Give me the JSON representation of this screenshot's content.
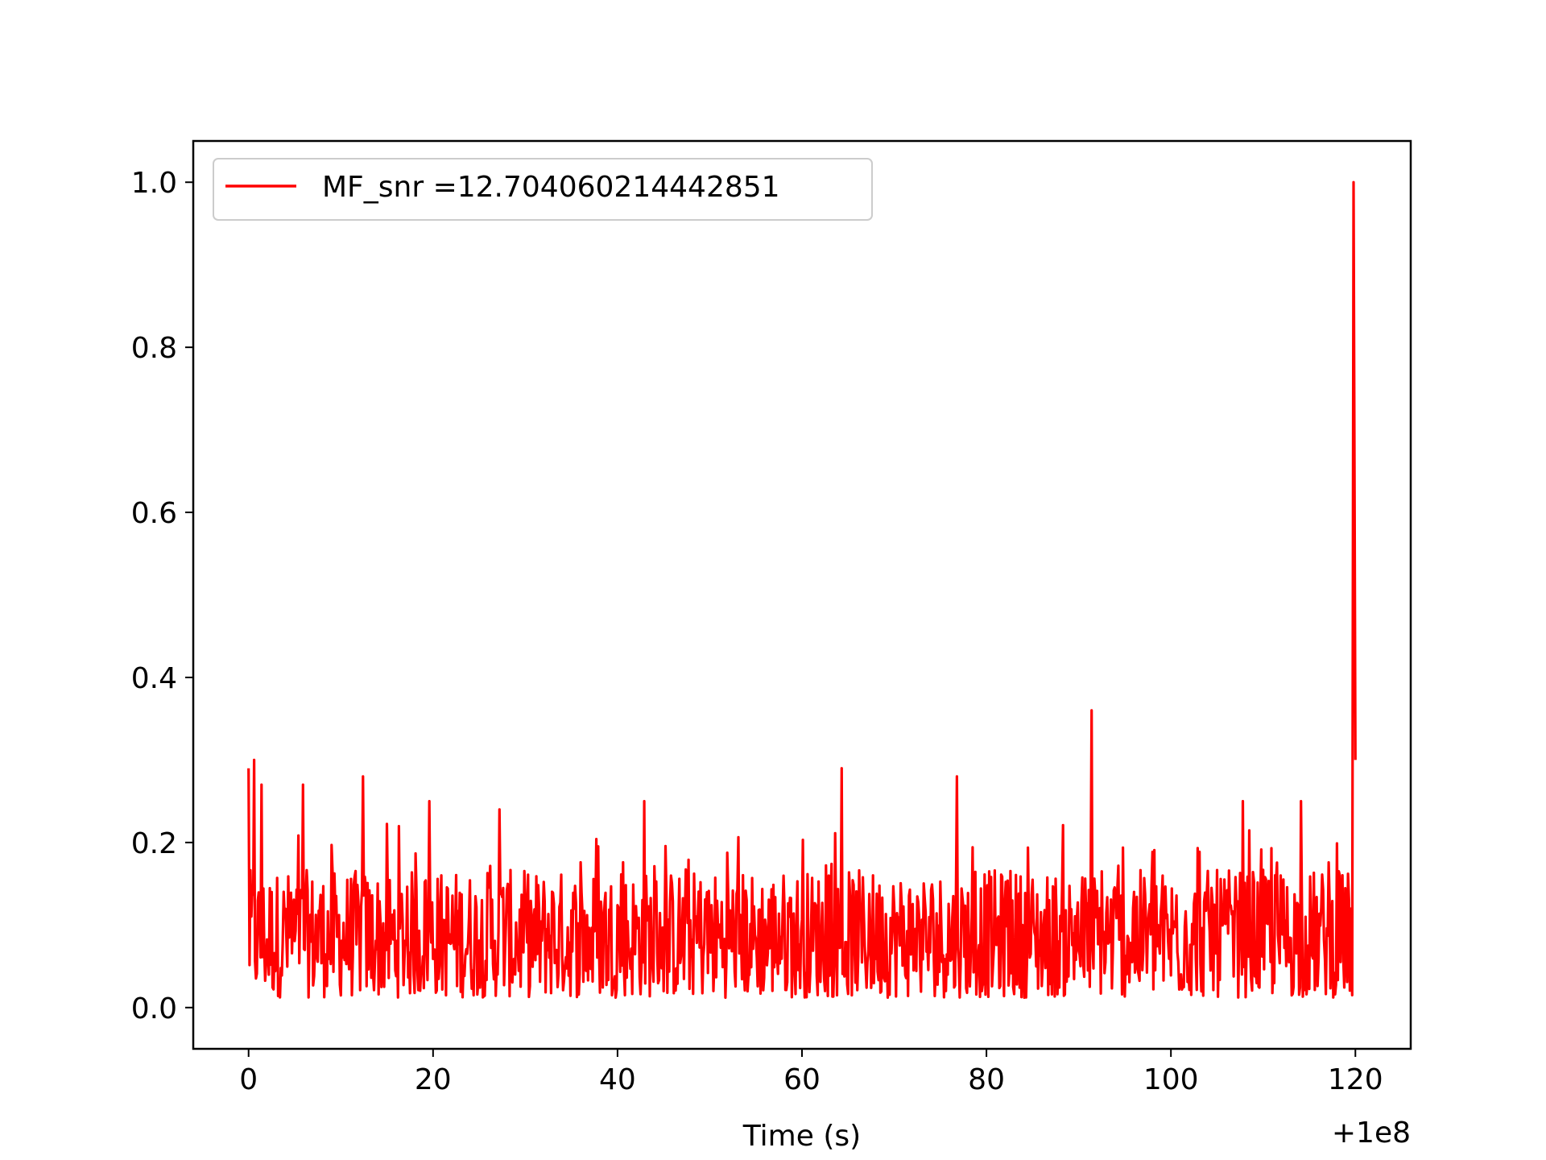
{
  "chart_data": {
    "type": "line",
    "title": "",
    "xlabel": "Time (s)",
    "ylabel": "",
    "x_offset_label": "+1e8",
    "xlim": [
      -6,
      126
    ],
    "ylim": [
      -0.05,
      1.05
    ],
    "xticks": [
      0,
      20,
      40,
      60,
      80,
      100,
      120
    ],
    "xtick_labels": [
      "0",
      "20",
      "40",
      "60",
      "80",
      "100",
      "120"
    ],
    "yticks": [
      0.0,
      0.2,
      0.4,
      0.6,
      0.8,
      1.0
    ],
    "ytick_labels": [
      "0.0",
      "0.2",
      "0.4",
      "0.6",
      "0.8",
      "1.0"
    ],
    "grid": false,
    "legend_position": "top-left",
    "series": [
      {
        "name": "MF_snr =12.704060214442851",
        "color": "#ff0000",
        "noise_range": [
          0,
          119.6
        ],
        "noise_min": 0.0,
        "noise_typical_max": 0.25,
        "peaks": [
          {
            "x": 0.0,
            "y": 0.29
          },
          {
            "x": 0.6,
            "y": 0.3
          },
          {
            "x": 1.4,
            "y": 0.27
          },
          {
            "x": 5.9,
            "y": 0.27
          },
          {
            "x": 12.4,
            "y": 0.28
          },
          {
            "x": 19.6,
            "y": 0.25
          },
          {
            "x": 27.2,
            "y": 0.24
          },
          {
            "x": 42.9,
            "y": 0.25
          },
          {
            "x": 64.3,
            "y": 0.29
          },
          {
            "x": 76.8,
            "y": 0.28
          },
          {
            "x": 91.4,
            "y": 0.36
          },
          {
            "x": 107.8,
            "y": 0.25
          },
          {
            "x": 114.1,
            "y": 0.25
          },
          {
            "x": 119.8,
            "y": 1.0
          },
          {
            "x": 120.0,
            "y": 0.3
          }
        ]
      }
    ]
  }
}
